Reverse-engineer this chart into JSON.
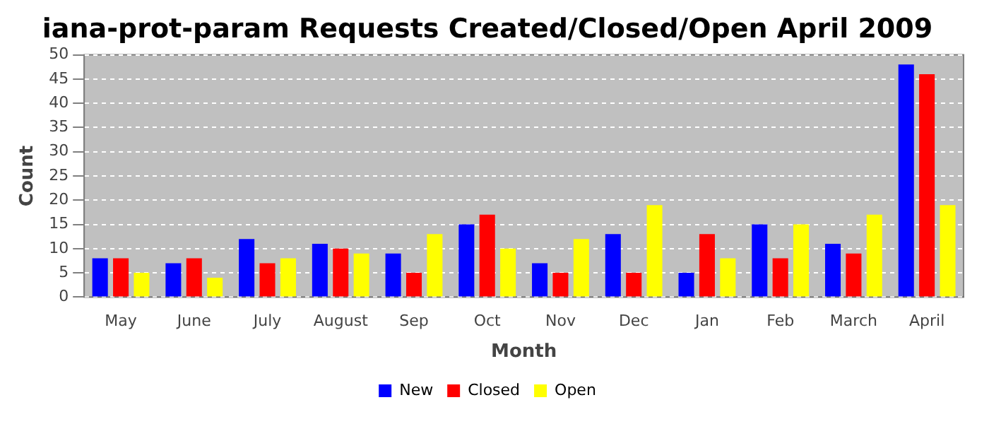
{
  "chart_data": {
    "type": "bar",
    "title": "iana-prot-param Requests Created/Closed/Open April 2009",
    "xlabel": "Month",
    "ylabel": "Count",
    "categories": [
      "May",
      "June",
      "July",
      "August",
      "Sep",
      "Oct",
      "Nov",
      "Dec",
      "Jan",
      "Feb",
      "March",
      "April"
    ],
    "series": [
      {
        "name": "New",
        "color": "#0000ff",
        "values": [
          8,
          7,
          12,
          11,
          9,
          15,
          7,
          13,
          5,
          15,
          11,
          48
        ]
      },
      {
        "name": "Closed",
        "color": "#ff0000",
        "values": [
          8,
          8,
          7,
          10,
          5,
          17,
          5,
          5,
          13,
          8,
          9,
          46
        ]
      },
      {
        "name": "Open",
        "color": "#ffff00",
        "values": [
          5,
          4,
          8,
          9,
          13,
          10,
          12,
          19,
          8,
          15,
          17,
          19
        ]
      }
    ],
    "ylim": [
      0,
      50
    ],
    "yticks": [
      0,
      5,
      10,
      15,
      20,
      25,
      30,
      35,
      40,
      45,
      50
    ],
    "grid": "y",
    "legend": "bottom"
  }
}
